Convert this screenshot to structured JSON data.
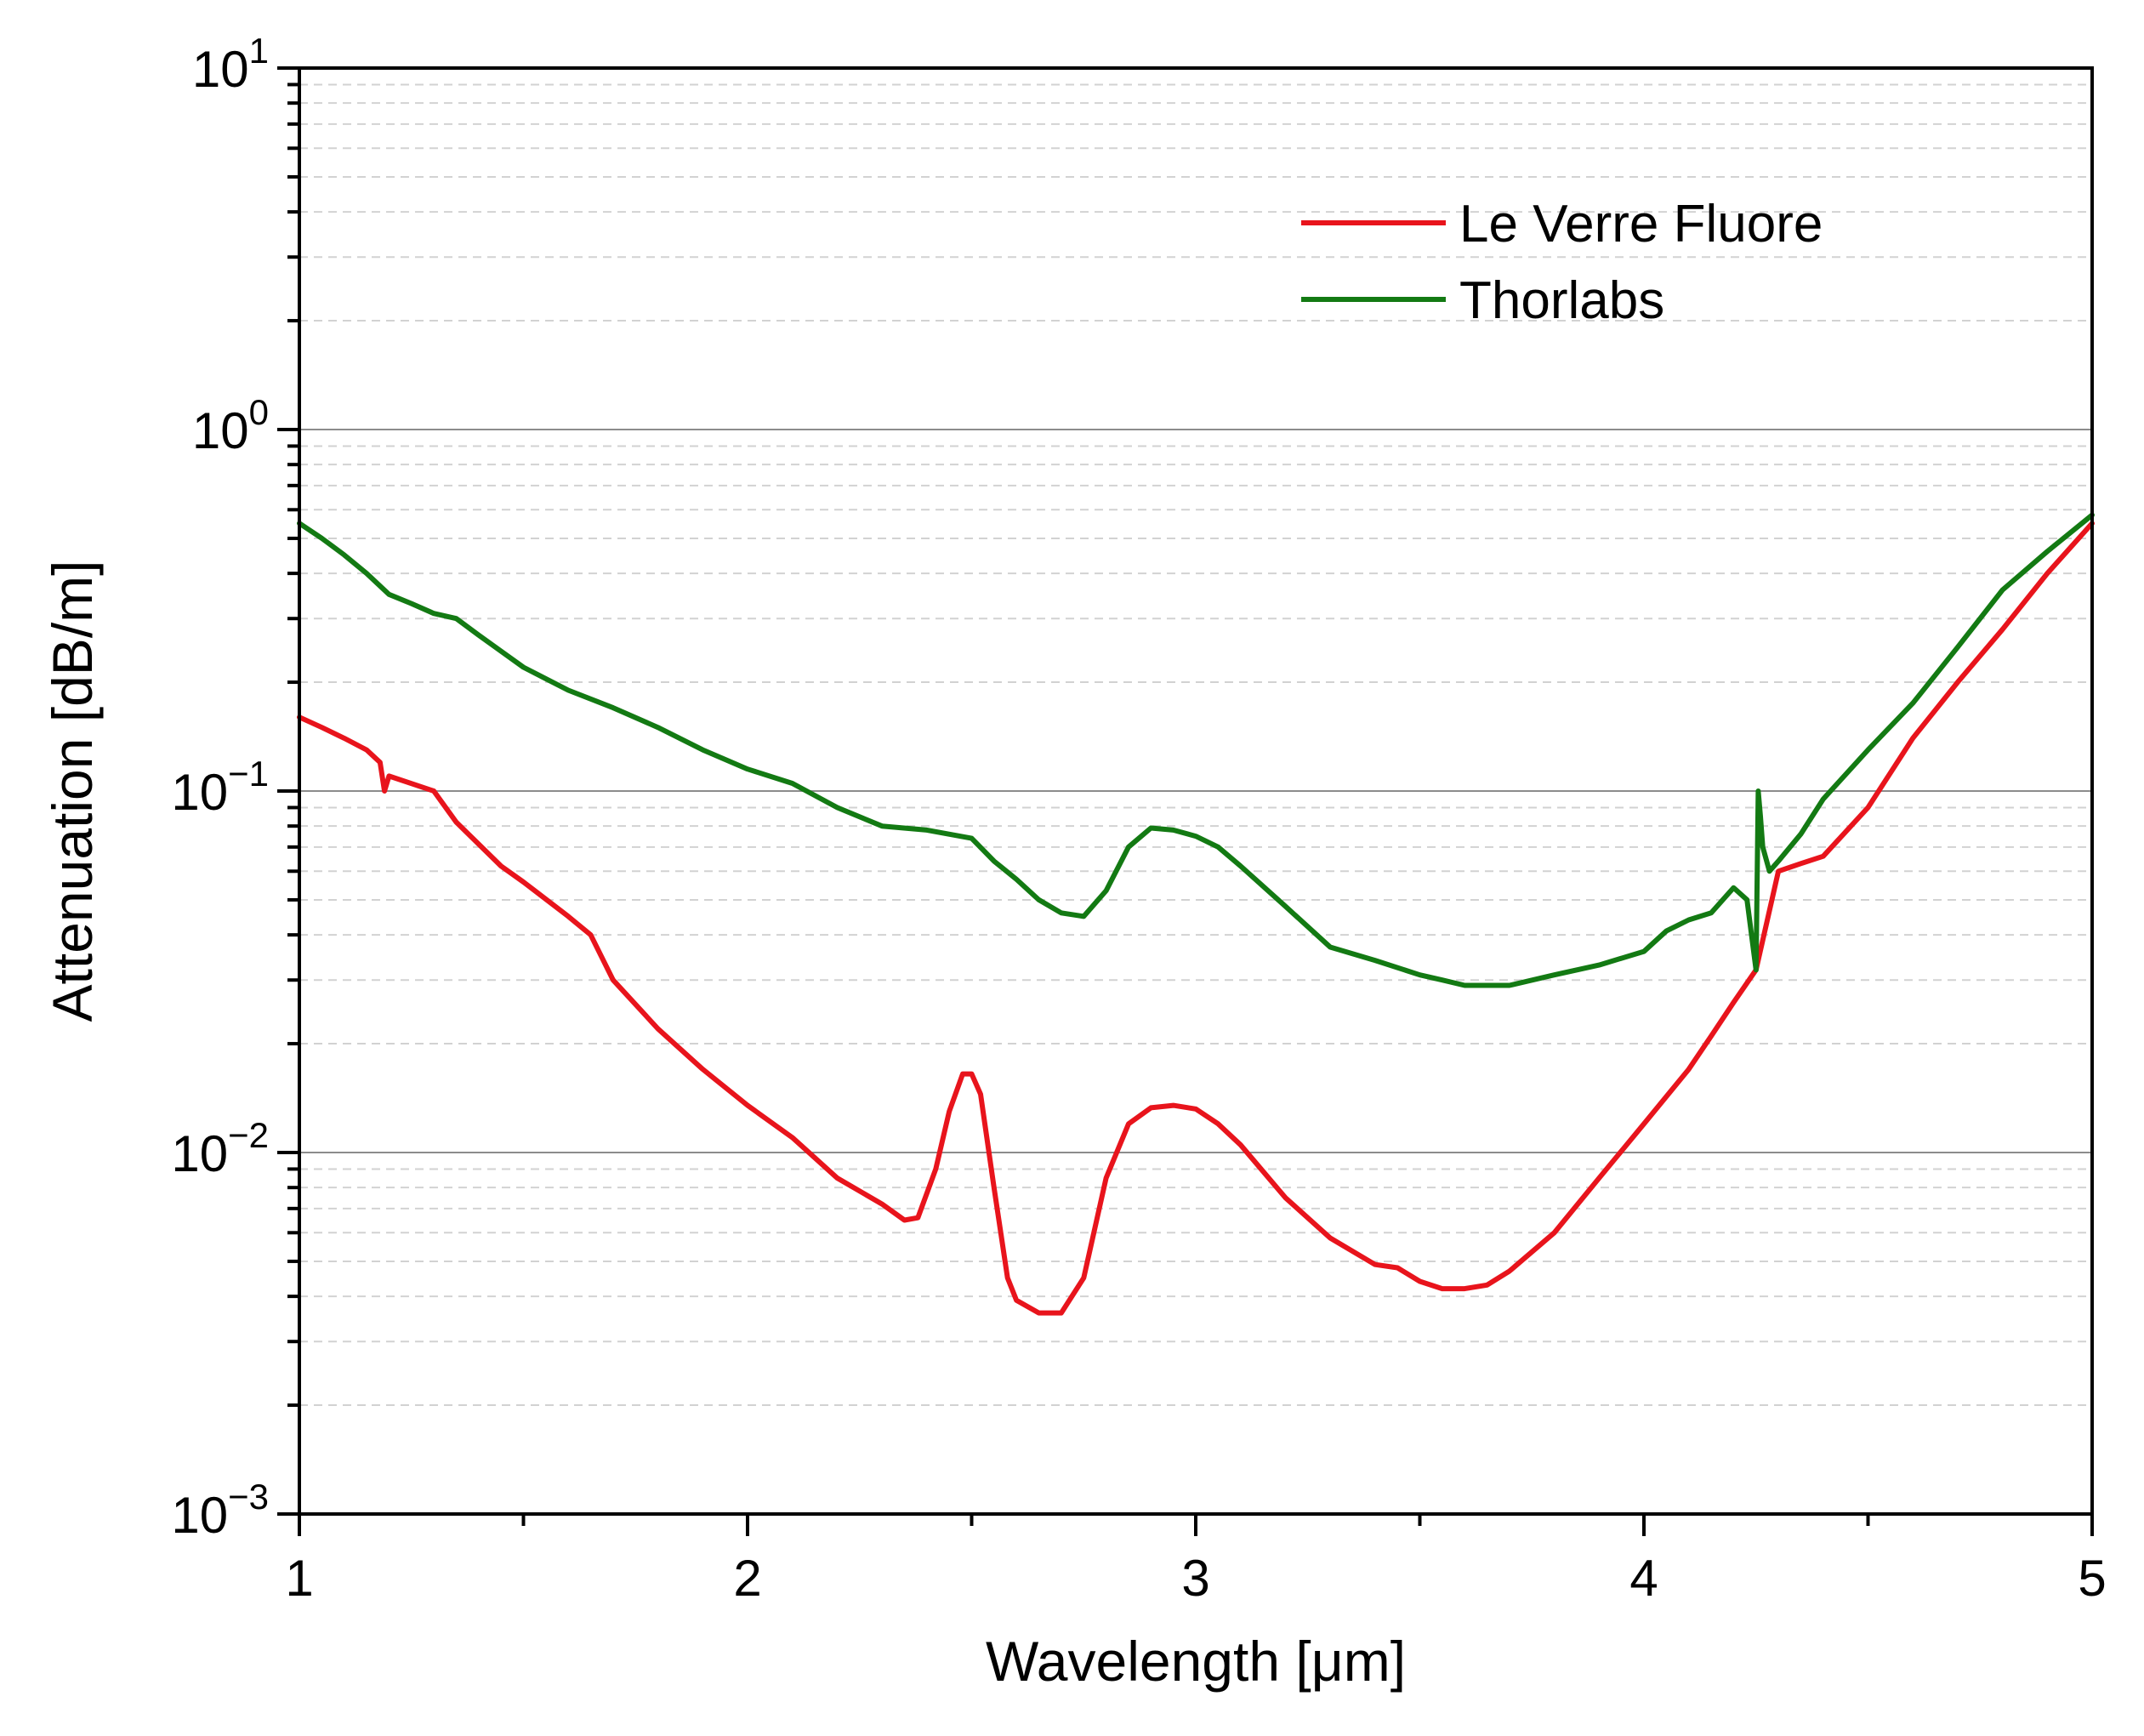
{
  "chart_data": {
    "type": "line",
    "title": "",
    "xlabel": "Wavelength [μm]",
    "ylabel": "Attenuation [dB/m]",
    "xlim": [
      1,
      5
    ],
    "ylim": [
      0.001,
      10
    ],
    "yscale": "log",
    "grid": true,
    "legend_position": "top-right",
    "x_ticks": [
      {
        "value": 1,
        "label": "1"
      },
      {
        "value": 2,
        "label": "2"
      },
      {
        "value": 3,
        "label": "3"
      },
      {
        "value": 4,
        "label": "4"
      },
      {
        "value": 5,
        "label": "5"
      }
    ],
    "y_ticks": [
      {
        "value": 0.001,
        "base": "10",
        "exp": "−3"
      },
      {
        "value": 0.01,
        "base": "10",
        "exp": "−2"
      },
      {
        "value": 0.1,
        "base": "10",
        "exp": "−1"
      },
      {
        "value": 1,
        "base": "10",
        "exp": "0"
      },
      {
        "value": 10,
        "base": "10",
        "exp": "1"
      }
    ],
    "series": [
      {
        "name": "Le Verre Fluore",
        "color": "#e8141c",
        "x": [
          1.0,
          1.05,
          1.1,
          1.15,
          1.18,
          1.19,
          1.2,
          1.3,
          1.35,
          1.45,
          1.5,
          1.6,
          1.65,
          1.7,
          1.8,
          1.9,
          2.0,
          2.1,
          2.2,
          2.3,
          2.35,
          2.38,
          2.42,
          2.45,
          2.48,
          2.5,
          2.52,
          2.55,
          2.58,
          2.6,
          2.65,
          2.7,
          2.75,
          2.8,
          2.85,
          2.9,
          2.95,
          3.0,
          3.05,
          3.1,
          3.2,
          3.3,
          3.4,
          3.45,
          3.5,
          3.55,
          3.6,
          3.65,
          3.7,
          3.8,
          3.9,
          4.0,
          4.1,
          4.15,
          4.2,
          4.25,
          4.3,
          4.35,
          4.4,
          4.5,
          4.6,
          4.7,
          4.8,
          4.9,
          5.0
        ],
        "values": [
          0.16,
          0.15,
          0.14,
          0.13,
          0.12,
          0.1,
          0.11,
          0.1,
          0.082,
          0.062,
          0.056,
          0.045,
          0.04,
          0.03,
          0.022,
          0.017,
          0.0135,
          0.011,
          0.0085,
          0.0072,
          0.0065,
          0.0066,
          0.009,
          0.013,
          0.0165,
          0.0165,
          0.0145,
          0.008,
          0.0045,
          0.0039,
          0.0036,
          0.0036,
          0.0045,
          0.0085,
          0.012,
          0.0133,
          0.0135,
          0.0132,
          0.012,
          0.0105,
          0.0075,
          0.0058,
          0.0049,
          0.0048,
          0.0044,
          0.0042,
          0.0042,
          0.0043,
          0.0047,
          0.006,
          0.0085,
          0.012,
          0.017,
          0.021,
          0.026,
          0.032,
          0.06,
          0.063,
          0.066,
          0.09,
          0.14,
          0.2,
          0.28,
          0.4,
          0.55
        ]
      },
      {
        "name": "Thorlabs",
        "color": "#137a13",
        "x": [
          1.0,
          1.05,
          1.1,
          1.15,
          1.2,
          1.25,
          1.3,
          1.35,
          1.4,
          1.5,
          1.6,
          1.7,
          1.8,
          1.9,
          2.0,
          2.1,
          2.2,
          2.3,
          2.4,
          2.5,
          2.55,
          2.6,
          2.65,
          2.7,
          2.75,
          2.8,
          2.85,
          2.9,
          2.95,
          3.0,
          3.05,
          3.1,
          3.2,
          3.3,
          3.4,
          3.5,
          3.55,
          3.6,
          3.7,
          3.8,
          3.9,
          4.0,
          4.05,
          4.1,
          4.15,
          4.2,
          4.23,
          4.25,
          4.255,
          4.26,
          4.265,
          4.28,
          4.3,
          4.35,
          4.4,
          4.5,
          4.6,
          4.7,
          4.8,
          4.9,
          5.0
        ],
        "values": [
          0.55,
          0.5,
          0.45,
          0.4,
          0.35,
          0.33,
          0.31,
          0.3,
          0.27,
          0.22,
          0.19,
          0.17,
          0.15,
          0.13,
          0.115,
          0.105,
          0.09,
          0.08,
          0.078,
          0.074,
          0.064,
          0.057,
          0.05,
          0.046,
          0.045,
          0.053,
          0.07,
          0.079,
          0.078,
          0.075,
          0.07,
          0.062,
          0.048,
          0.037,
          0.034,
          0.031,
          0.03,
          0.029,
          0.029,
          0.031,
          0.033,
          0.036,
          0.041,
          0.044,
          0.046,
          0.054,
          0.05,
          0.032,
          0.1,
          0.085,
          0.07,
          0.06,
          0.064,
          0.076,
          0.095,
          0.13,
          0.175,
          0.25,
          0.36,
          0.46,
          0.58
        ]
      }
    ]
  }
}
